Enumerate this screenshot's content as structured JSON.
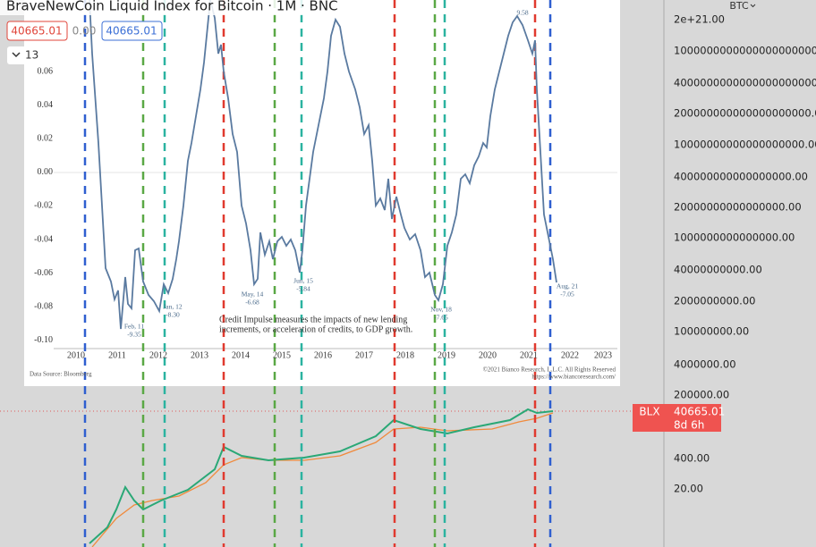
{
  "header": {
    "title": "BraveNewCoin Liquid Index for Bitcoin · 1M · BNC",
    "open": "40665.01",
    "change": "0.00",
    "close": "40665.01",
    "collapse": "13"
  },
  "price_axis": {
    "currency": "BTC",
    "labels": [
      "2e+21.00",
      "10000000000000000000000.00",
      "4000000000000000000000.00",
      "200000000000000000000.00",
      "10000000000000000000.00",
      "400000000000000000.00",
      "20000000000000000.00",
      "1000000000000000.00",
      "40000000000.00",
      "2000000000.00",
      "100000000.00",
      "4000000.00",
      "200000.00",
      "400.00",
      "20.00"
    ],
    "tag": {
      "symbol": "BLX",
      "price": "40665.01",
      "countdown": "8d 6h"
    }
  },
  "overlay": {
    "yticks": [
      "0.06",
      "0.04",
      "0.02",
      "0.00",
      "-0.02",
      "-0.04",
      "-0.06",
      "-0.08",
      "-0.10"
    ],
    "xticks": [
      "2010",
      "2011",
      "2012",
      "2013",
      "2014",
      "2015",
      "2016",
      "2017",
      "2018",
      "2019",
      "2020",
      "2021",
      "2022",
      "2023"
    ],
    "annotations": [
      {
        "date": "Feb, 11",
        "value": "-9.35"
      },
      {
        "date": "Jan, 12",
        "value": "-8.30"
      },
      {
        "date": "May, 14",
        "value": "-6.68"
      },
      {
        "date": "Jun, 15",
        "value": "-5.84"
      },
      {
        "date": "Nov, 18",
        "value": "-7.65"
      },
      {
        "date": "Aug, 21",
        "value": "-7.05"
      },
      {
        "date": "",
        "value": "9.58"
      }
    ],
    "note": [
      "Credit Impulse measures the impacts of new lending",
      "increments, or acceleration of credits, to GDP growth."
    ],
    "source": "Data Source: Bloomberg",
    "copyright": "©2021 Bianco Research, L.L.C. All Rights Reserved",
    "url": "https://www.biancoresearch.com/"
  }
}
